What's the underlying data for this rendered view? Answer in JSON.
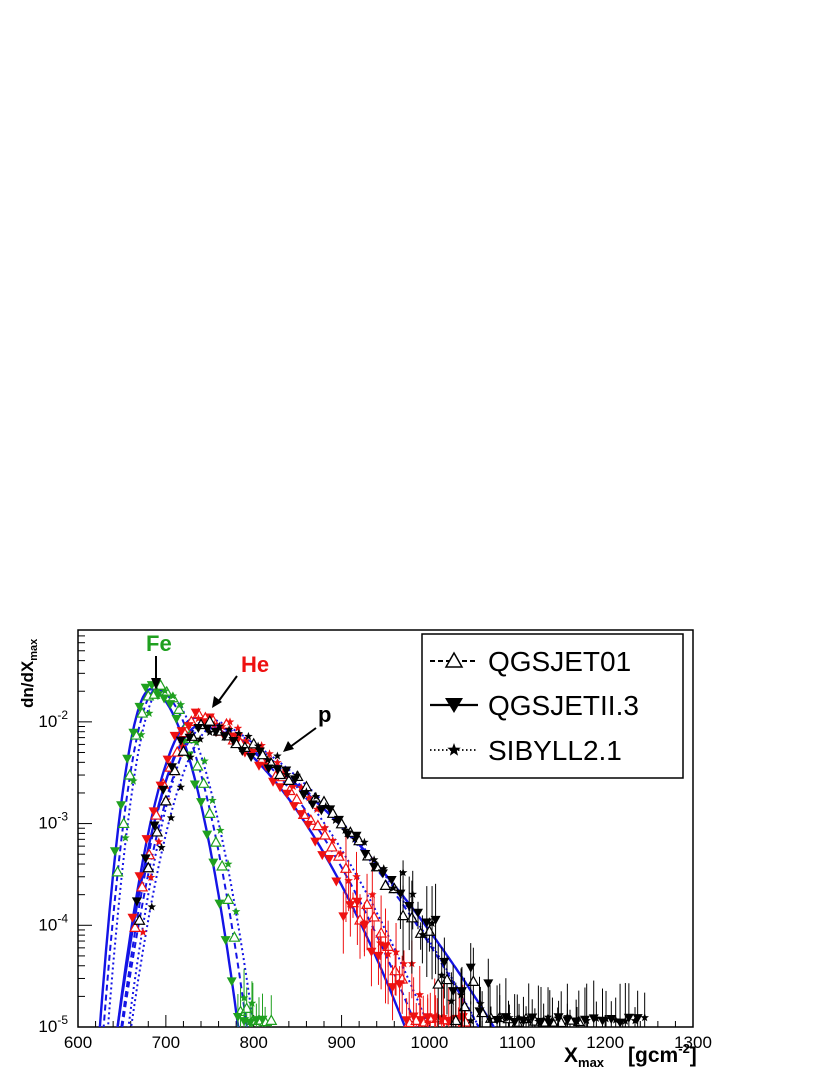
{
  "chart_data": {
    "type": "scatter",
    "title": "",
    "xlabel": {
      "main": "X",
      "sub": "max",
      "unit_open": "[gcm",
      "unit_exp": "-2",
      "unit_close": "]"
    },
    "ylabel": {
      "main": "dn/dX",
      "sub": "max"
    },
    "xlim": [
      600,
      1300
    ],
    "ylim": [
      1e-05,
      0.08
    ],
    "y_log": true,
    "x_ticks": [
      "600",
      "700",
      "800",
      "900",
      "1000",
      "1100",
      "1200",
      "1300"
    ],
    "y_ticks": [
      {
        "value": 1e-05,
        "base": "10",
        "exp": "-5"
      },
      {
        "value": 0.0001,
        "base": "10",
        "exp": "-4"
      },
      {
        "value": 0.001,
        "base": "10",
        "exp": "-3"
      },
      {
        "value": 0.01,
        "base": "10",
        "exp": "-2"
      }
    ],
    "legend": {
      "position": "top-right",
      "entries": [
        {
          "label": "QGSJET01",
          "line": "dashed",
          "marker": "open-triangle-up"
        },
        {
          "label": "QGSJETII.3",
          "line": "solid",
          "marker": "filled-triangle-down"
        },
        {
          "label": "SIBYLL2.1",
          "line": "dotted",
          "marker": "filled-star"
        }
      ]
    },
    "annotations": [
      {
        "text": "Fe",
        "color": "#1fa01f"
      },
      {
        "text": "He",
        "color": "#ee1111"
      },
      {
        "text": "p",
        "color": "#000000"
      }
    ],
    "colors": {
      "Fe": "#1fa01f",
      "He": "#ee1111",
      "p": "#000000",
      "fit": "#1414e6"
    },
    "fits": [
      {
        "primary": "Fe",
        "model": "QGSJET01",
        "peak": 690,
        "amp": 0.021,
        "w_left": 22,
        "w_right": 36,
        "tail": 0.9
      },
      {
        "primary": "Fe",
        "model": "QGSJETII.3",
        "peak": 683,
        "amp": 0.021,
        "w_left": 21,
        "w_right": 35,
        "tail": 0.9
      },
      {
        "primary": "Fe",
        "model": "SIBYLL2.1",
        "peak": 695,
        "amp": 0.021,
        "w_left": 22,
        "w_right": 37,
        "tail": 0.9
      },
      {
        "primary": "He",
        "model": "QGSJET01",
        "peak": 742,
        "amp": 0.011,
        "w_left": 35,
        "w_right": 80,
        "tail": 0.55
      },
      {
        "primary": "He",
        "model": "QGSJETII.3",
        "peak": 735,
        "amp": 0.011,
        "w_left": 34,
        "w_right": 78,
        "tail": 0.55
      },
      {
        "primary": "He",
        "model": "SIBYLL2.1",
        "peak": 750,
        "amp": 0.011,
        "w_left": 35,
        "w_right": 82,
        "tail": 0.55
      },
      {
        "primary": "p",
        "model": "QGSJET01",
        "peak": 750,
        "amp": 0.0095,
        "w_left": 38,
        "w_right": 95,
        "tail": 0.4
      },
      {
        "primary": "p",
        "model": "QGSJETII.3",
        "peak": 742,
        "amp": 0.0095,
        "w_left": 37,
        "w_right": 100,
        "tail": 0.35
      },
      {
        "primary": "p",
        "model": "SIBYLL2.1",
        "peak": 760,
        "amp": 0.0095,
        "w_left": 38,
        "w_right": 92,
        "tail": 0.4
      }
    ],
    "series": [
      {
        "primary": "Fe",
        "model": "QGSJET01",
        "marker": "open-triangle-up",
        "x_start": 645,
        "x_end": 820,
        "step": 7,
        "err_from": 780
      },
      {
        "primary": "Fe",
        "model": "QGSJETII.3",
        "marker": "filled-triangle-down",
        "x_start": 640,
        "x_end": 815,
        "step": 7,
        "err_from": 780
      },
      {
        "primary": "Fe",
        "model": "SIBYLL2.1",
        "marker": "filled-star",
        "x_start": 650,
        "x_end": 800,
        "step": 9,
        "err_from": 780
      },
      {
        "primary": "He",
        "model": "QGSJET01",
        "marker": "open-triangle-up",
        "x_start": 665,
        "x_end": 1045,
        "step": 8,
        "err_from": 900
      },
      {
        "primary": "He",
        "model": "QGSJETII.3",
        "marker": "filled-triangle-down",
        "x_start": 660,
        "x_end": 1040,
        "step": 8,
        "err_from": 900
      },
      {
        "primary": "He",
        "model": "SIBYLL2.1",
        "marker": "filled-star",
        "x_start": 670,
        "x_end": 1040,
        "step": 9,
        "err_from": 900
      },
      {
        "primary": "p",
        "model": "QGSJET01",
        "marker": "open-triangle-up",
        "x_start": 670,
        "x_end": 1170,
        "step": 10,
        "err_from": 960
      },
      {
        "primary": "p",
        "model": "QGSJETII.3",
        "marker": "filled-triangle-down",
        "x_start": 665,
        "x_end": 1245,
        "step": 10,
        "err_from": 960
      },
      {
        "primary": "p",
        "model": "SIBYLL2.1",
        "marker": "filled-star",
        "x_start": 680,
        "x_end": 1255,
        "step": 11,
        "err_from": 960
      }
    ]
  }
}
